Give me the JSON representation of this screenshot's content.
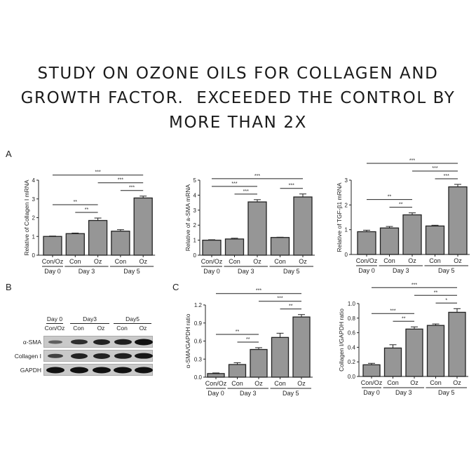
{
  "title": {
    "lines": [
      "STUDY ON OZONE OILS FOR COLLAGEN AND",
      "GROWTH FACTOR.  EXCEEDED THE CONTROL BY",
      "MORE THAN 2X"
    ]
  },
  "panels": {
    "a": "A",
    "b": "B",
    "c": "C"
  },
  "blot": {
    "groups": [
      "Day 0",
      "Day3",
      "Day5"
    ],
    "lanes": [
      "Con/Oz",
      "Con",
      "Oz",
      "Con",
      "Oz"
    ],
    "rows": [
      {
        "label": "α-SMA",
        "band_intensity": [
          0.35,
          0.75,
          0.85,
          0.9,
          1.0
        ]
      },
      {
        "label": "Collagen I",
        "band_intensity": [
          0.6,
          0.85,
          0.85,
          0.9,
          0.95
        ]
      },
      {
        "label": "GAPDH",
        "band_intensity": [
          1.0,
          1.0,
          1.0,
          1.0,
          1.0
        ]
      }
    ]
  },
  "colors": {
    "bar": "#969696",
    "bar_edge": "#222222"
  },
  "chart_data": [
    {
      "type": "bar",
      "panel": "A",
      "ylabel": "Relative of Collagen I mRNA",
      "categories": [
        "Con/Oz",
        "Con",
        "Oz",
        "Con",
        "Oz"
      ],
      "groups": [
        {
          "label": "Day 0",
          "from": 0,
          "to": 0
        },
        {
          "label": "Day 3",
          "from": 1,
          "to": 2
        },
        {
          "label": "Day 5",
          "from": 3,
          "to": 4
        }
      ],
      "values": [
        1.0,
        1.15,
        1.85,
        1.28,
        3.05
      ],
      "errors": [
        0.02,
        0.03,
        0.13,
        0.08,
        0.1
      ],
      "ylim": [
        0,
        4
      ],
      "yticks": [
        "0",
        "1",
        "2",
        "3",
        "4"
      ],
      "significance": [
        {
          "from": 1,
          "to": 2,
          "label": "**"
        },
        {
          "from": 0,
          "to": 2,
          "label": "**"
        },
        {
          "from": 3,
          "to": 4,
          "label": "***"
        },
        {
          "from": 2,
          "to": 4,
          "label": "***"
        },
        {
          "from": 0,
          "to": 4,
          "label": "***"
        }
      ]
    },
    {
      "type": "bar",
      "panel": "A",
      "ylabel": "Relative of a-SMA mRNA",
      "categories": [
        "Con/Oz",
        "Con",
        "Oz",
        "Con",
        "Oz"
      ],
      "groups": [
        {
          "label": "Day 0",
          "from": 0,
          "to": 0
        },
        {
          "label": "Day 3",
          "from": 1,
          "to": 2
        },
        {
          "label": "Day 5",
          "from": 3,
          "to": 4
        }
      ],
      "values": [
        1.0,
        1.08,
        3.55,
        1.18,
        3.88
      ],
      "errors": [
        0.03,
        0.05,
        0.15,
        0.02,
        0.2
      ],
      "ylim": [
        0,
        5
      ],
      "yticks": [
        "0",
        "1",
        "2",
        "3",
        "4",
        "5"
      ],
      "significance": [
        {
          "from": 1,
          "to": 2,
          "label": "***"
        },
        {
          "from": 3,
          "to": 4,
          "label": "***"
        },
        {
          "from": 0,
          "to": 2,
          "label": "***"
        },
        {
          "from": 0,
          "to": 4,
          "label": "***"
        }
      ]
    },
    {
      "type": "bar",
      "panel": "A",
      "ylabel": "Relative of TGF-β1 mRNA",
      "categories": [
        "Con/Oz",
        "Con",
        "Oz",
        "Con",
        "Oz"
      ],
      "groups": [
        {
          "label": "Day 0",
          "from": 0,
          "to": 0
        },
        {
          "label": "Day 3",
          "from": 1,
          "to": 2
        },
        {
          "label": "Day 5",
          "from": 3,
          "to": 4
        }
      ],
      "values": [
        0.92,
        1.07,
        1.6,
        1.15,
        2.73
      ],
      "errors": [
        0.06,
        0.06,
        0.08,
        0.03,
        0.1
      ],
      "ylim": [
        0,
        3
      ],
      "yticks": [
        "0",
        "1",
        "2",
        "3"
      ],
      "significance": [
        {
          "from": 1,
          "to": 2,
          "label": "**"
        },
        {
          "from": 0,
          "to": 2,
          "label": "**"
        },
        {
          "from": 3,
          "to": 4,
          "label": "***"
        },
        {
          "from": 2,
          "to": 4,
          "label": "***"
        },
        {
          "from": 0,
          "to": 4,
          "label": "***"
        }
      ]
    },
    {
      "type": "bar",
      "panel": "C",
      "ylabel": "α-SMA/GAPDH ratio",
      "categories": [
        "Con/Oz",
        "Con",
        "Oz",
        "Con",
        "Oz"
      ],
      "groups": [
        {
          "label": "Day 0",
          "from": 0,
          "to": 0
        },
        {
          "label": "Day 3",
          "from": 1,
          "to": 2
        },
        {
          "label": "Day 5",
          "from": 3,
          "to": 4
        }
      ],
      "values": [
        0.06,
        0.21,
        0.46,
        0.66,
        1.0
      ],
      "errors": [
        0.01,
        0.03,
        0.03,
        0.07,
        0.04
      ],
      "ylim": [
        0,
        1.2
      ],
      "yticks": [
        "0.0",
        "0.3",
        "0.6",
        "0.9",
        "1.2"
      ],
      "significance": [
        {
          "from": 1,
          "to": 2,
          "label": "**"
        },
        {
          "from": 0,
          "to": 2,
          "label": "**"
        },
        {
          "from": 3,
          "to": 4,
          "label": "**"
        },
        {
          "from": 2,
          "to": 4,
          "label": "***"
        },
        {
          "from": 0,
          "to": 4,
          "label": "***"
        }
      ]
    },
    {
      "type": "bar",
      "panel": "C",
      "ylabel": "Collagen I/GAPDH ratio",
      "categories": [
        "Con/Oz",
        "Con",
        "Oz",
        "Con",
        "Oz"
      ],
      "groups": [
        {
          "label": "Day 0",
          "from": 0,
          "to": 0
        },
        {
          "label": "Day 3",
          "from": 1,
          "to": 2
        },
        {
          "label": "Day 5",
          "from": 3,
          "to": 4
        }
      ],
      "values": [
        0.16,
        0.39,
        0.65,
        0.7,
        0.88
      ],
      "errors": [
        0.02,
        0.045,
        0.03,
        0.02,
        0.05
      ],
      "ylim": [
        0,
        1.0
      ],
      "yticks": [
        "0.0",
        "0.2",
        "0.4",
        "0.6",
        "0.8",
        "1.0"
      ],
      "significance": [
        {
          "from": 1,
          "to": 2,
          "label": "**"
        },
        {
          "from": 0,
          "to": 2,
          "label": "***"
        },
        {
          "from": 3,
          "to": 4,
          "label": "*"
        },
        {
          "from": 2,
          "to": 4,
          "label": "**"
        },
        {
          "from": 0,
          "to": 4,
          "label": "***"
        }
      ]
    }
  ]
}
